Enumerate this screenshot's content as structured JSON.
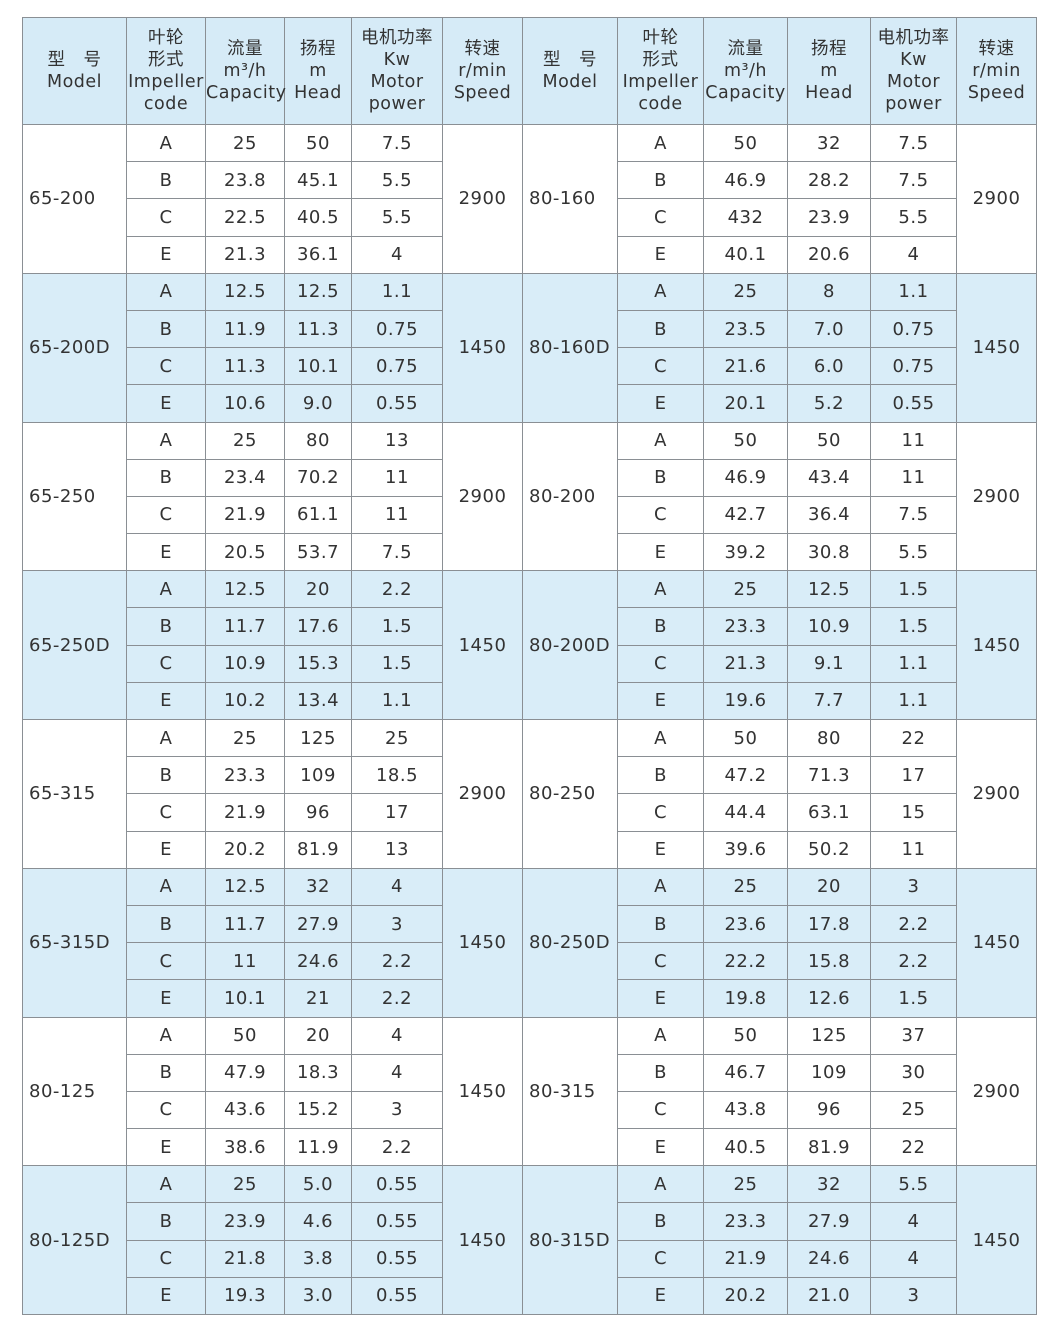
{
  "header": {
    "model": [
      "型　号",
      "Model"
    ],
    "impeller": [
      "叶轮",
      "形式",
      "Impeller",
      "code"
    ],
    "capacity": [
      "流量",
      "m³/h",
      "Capacity"
    ],
    "head": [
      "扬程",
      "m",
      "Head"
    ],
    "power": [
      "电机功率",
      "Kw",
      "Motor",
      "power"
    ],
    "speed": [
      "转速",
      "r/min",
      "Speed"
    ]
  },
  "groups": [
    {
      "left": {
        "model": "65-200",
        "speed": "2900",
        "rows": [
          [
            "A",
            "25",
            "50",
            "7.5"
          ],
          [
            "B",
            "23.8",
            "45.1",
            "5.5"
          ],
          [
            "C",
            "22.5",
            "40.5",
            "5.5"
          ],
          [
            "E",
            "21.3",
            "36.1",
            "4"
          ]
        ]
      },
      "right": {
        "model": "80-160",
        "speed": "2900",
        "rows": [
          [
            "A",
            "50",
            "32",
            "7.5"
          ],
          [
            "B",
            "46.9",
            "28.2",
            "7.5"
          ],
          [
            "C",
            "432",
            "23.9",
            "5.5"
          ],
          [
            "E",
            "40.1",
            "20.6",
            "4"
          ]
        ]
      }
    },
    {
      "left": {
        "model": "65-200D",
        "speed": "1450",
        "rows": [
          [
            "A",
            "12.5",
            "12.5",
            "1.1"
          ],
          [
            "B",
            "11.9",
            "11.3",
            "0.75"
          ],
          [
            "C",
            "11.3",
            "10.1",
            "0.75"
          ],
          [
            "E",
            "10.6",
            "9.0",
            "0.55"
          ]
        ]
      },
      "right": {
        "model": "80-160D",
        "speed": "1450",
        "rows": [
          [
            "A",
            "25",
            "8",
            "1.1"
          ],
          [
            "B",
            "23.5",
            "7.0",
            "0.75"
          ],
          [
            "C",
            "21.6",
            "6.0",
            "0.75"
          ],
          [
            "E",
            "20.1",
            "5.2",
            "0.55"
          ]
        ]
      }
    },
    {
      "left": {
        "model": "65-250",
        "speed": "2900",
        "rows": [
          [
            "A",
            "25",
            "80",
            "13"
          ],
          [
            "B",
            "23.4",
            "70.2",
            "11"
          ],
          [
            "C",
            "21.9",
            "61.1",
            "11"
          ],
          [
            "E",
            "20.5",
            "53.7",
            "7.5"
          ]
        ]
      },
      "right": {
        "model": "80-200",
        "speed": "2900",
        "rows": [
          [
            "A",
            "50",
            "50",
            "11"
          ],
          [
            "B",
            "46.9",
            "43.4",
            "11"
          ],
          [
            "C",
            "42.7",
            "36.4",
            "7.5"
          ],
          [
            "E",
            "39.2",
            "30.8",
            "5.5"
          ]
        ]
      }
    },
    {
      "left": {
        "model": "65-250D",
        "speed": "1450",
        "rows": [
          [
            "A",
            "12.5",
            "20",
            "2.2"
          ],
          [
            "B",
            "11.7",
            "17.6",
            "1.5"
          ],
          [
            "C",
            "10.9",
            "15.3",
            "1.5"
          ],
          [
            "E",
            "10.2",
            "13.4",
            "1.1"
          ]
        ]
      },
      "right": {
        "model": "80-200D",
        "speed": "1450",
        "rows": [
          [
            "A",
            "25",
            "12.5",
            "1.5"
          ],
          [
            "B",
            "23.3",
            "10.9",
            "1.5"
          ],
          [
            "C",
            "21.3",
            "9.1",
            "1.1"
          ],
          [
            "E",
            "19.6",
            "7.7",
            "1.1"
          ]
        ]
      }
    },
    {
      "left": {
        "model": "65-315",
        "speed": "2900",
        "rows": [
          [
            "A",
            "25",
            "125",
            "25"
          ],
          [
            "B",
            "23.3",
            "109",
            "18.5"
          ],
          [
            "C",
            "21.9",
            "96",
            "17"
          ],
          [
            "E",
            "20.2",
            "81.9",
            "13"
          ]
        ]
      },
      "right": {
        "model": "80-250",
        "speed": "2900",
        "rows": [
          [
            "A",
            "50",
            "80",
            "22"
          ],
          [
            "B",
            "47.2",
            "71.3",
            "17"
          ],
          [
            "C",
            "44.4",
            "63.1",
            "15"
          ],
          [
            "E",
            "39.6",
            "50.2",
            "11"
          ]
        ]
      }
    },
    {
      "left": {
        "model": "65-315D",
        "speed": "1450",
        "rows": [
          [
            "A",
            "12.5",
            "32",
            "4"
          ],
          [
            "B",
            "11.7",
            "27.9",
            "3"
          ],
          [
            "C",
            "11",
            "24.6",
            "2.2"
          ],
          [
            "E",
            "10.1",
            "21",
            "2.2"
          ]
        ]
      },
      "right": {
        "model": "80-250D",
        "speed": "1450",
        "rows": [
          [
            "A",
            "25",
            "20",
            "3"
          ],
          [
            "B",
            "23.6",
            "17.8",
            "2.2"
          ],
          [
            "C",
            "22.2",
            "15.8",
            "2.2"
          ],
          [
            "E",
            "19.8",
            "12.6",
            "1.5"
          ]
        ]
      }
    },
    {
      "left": {
        "model": "80-125",
        "speed": "1450",
        "rows": [
          [
            "A",
            "50",
            "20",
            "4"
          ],
          [
            "B",
            "47.9",
            "18.3",
            "4"
          ],
          [
            "C",
            "43.6",
            "15.2",
            "3"
          ],
          [
            "E",
            "38.6",
            "11.9",
            "2.2"
          ]
        ]
      },
      "right": {
        "model": "80-315",
        "speed": "2900",
        "rows": [
          [
            "A",
            "50",
            "125",
            "37"
          ],
          [
            "B",
            "46.7",
            "109",
            "30"
          ],
          [
            "C",
            "43.8",
            "96",
            "25"
          ],
          [
            "E",
            "40.5",
            "81.9",
            "22"
          ]
        ]
      }
    },
    {
      "left": {
        "model": "80-125D",
        "speed": "1450",
        "rows": [
          [
            "A",
            "25",
            "5.0",
            "0.55"
          ],
          [
            "B",
            "23.9",
            "4.6",
            "0.55"
          ],
          [
            "C",
            "21.8",
            "3.8",
            "0.55"
          ],
          [
            "E",
            "19.3",
            "3.0",
            "0.55"
          ]
        ]
      },
      "right": {
        "model": "80-315D",
        "speed": "1450",
        "rows": [
          [
            "A",
            "25",
            "32",
            "5.5"
          ],
          [
            "B",
            "23.3",
            "27.9",
            "4"
          ],
          [
            "C",
            "21.9",
            "24.6",
            "4"
          ],
          [
            "E",
            "20.2",
            "21.0",
            "3"
          ]
        ]
      }
    }
  ]
}
